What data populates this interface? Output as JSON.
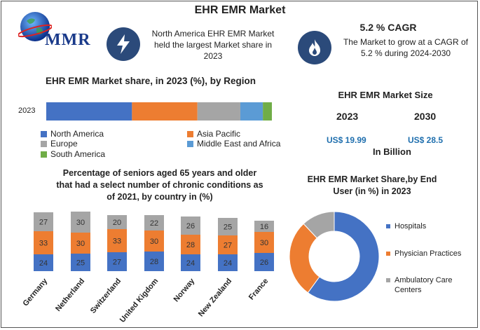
{
  "header": {
    "title": "EHR EMR Market"
  },
  "logo": {
    "text": "MMR",
    "icon": "globe-icon"
  },
  "highlights": [
    {
      "icon": "lightning-icon",
      "text": "North America EHR EMR Market held the largest Market share in 2023"
    },
    {
      "icon": "flame-icon",
      "heading": "5.2 % CAGR",
      "text": "The Market to grow at a CAGR of 5.2 % during 2024-2030"
    }
  ],
  "market_size": {
    "title": "EHR EMR Market Size",
    "year1": "2023",
    "year2": "2030",
    "value1": "US$ 19.99",
    "value2": "US$ 28.5",
    "unit": "In Billion"
  },
  "colors": {
    "blue": "#4472c4",
    "orange": "#ed7d31",
    "gray": "#a5a5a5",
    "lightblue": "#5b9bd5",
    "green": "#70ad47"
  },
  "chart_data": [
    {
      "type": "bar",
      "title": "EHR EMR Market share, in 2023 (%), by Region",
      "categories": [
        "2023"
      ],
      "series": [
        {
          "name": "North America",
          "values": [
            38
          ],
          "color": "#4472c4"
        },
        {
          "name": "Asia Pacific",
          "values": [
            29
          ],
          "color": "#ed7d31"
        },
        {
          "name": "Europe",
          "values": [
            19
          ],
          "color": "#a5a5a5"
        },
        {
          "name": "Middle East and Africa",
          "values": [
            10
          ],
          "color": "#5b9bd5"
        },
        {
          "name": "South America",
          "values": [
            4
          ],
          "color": "#70ad47"
        }
      ]
    },
    {
      "type": "bar",
      "title": "Percentage of seniors aged 65 years and older that had a select number of chronic conditions as of 2021, by country in (%)",
      "categories": [
        "Germany",
        "Netherland",
        "Switzerland",
        "United Kigdom",
        "Norway",
        "New Zealand",
        "France"
      ],
      "series": [
        {
          "values": [
            24,
            25,
            27,
            28,
            24,
            24,
            26
          ],
          "color": "#4472c4"
        },
        {
          "values": [
            33,
            30,
            33,
            30,
            28,
            27,
            30
          ],
          "color": "#ed7d31"
        },
        {
          "values": [
            27,
            30,
            20,
            22,
            26,
            25,
            16
          ],
          "color": "#a5a5a5"
        }
      ]
    },
    {
      "type": "pie",
      "title": "EHR EMR Market Share,by End User (in %) in 2023",
      "labels": [
        "Hospitals",
        "Physician Practices",
        "Ambulatory Care Centers"
      ],
      "values": [
        60,
        28,
        12
      ],
      "colors": [
        "#4472c4",
        "#ed7d31",
        "#a5a5a5"
      ]
    }
  ]
}
